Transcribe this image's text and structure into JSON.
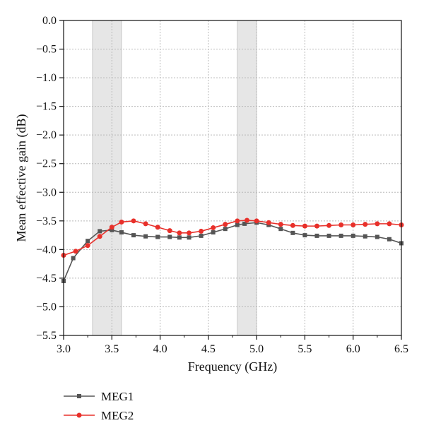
{
  "chart_data": {
    "type": "line",
    "xlabel": "Frequency (GHz)",
    "ylabel": "Mean effective gain (dB)",
    "xlim": [
      3.0,
      6.5
    ],
    "ylim": [
      -5.5,
      0.0
    ],
    "x_ticks": [
      "3.0",
      "3.5",
      "4.0",
      "4.5",
      "5.0",
      "5.5",
      "6.0",
      "6.5"
    ],
    "y_ticks": [
      "0.0",
      "−0.5",
      "−1.0",
      "−1.5",
      "−2.0",
      "−2.5",
      "−3.0",
      "−3.5",
      "−4.0",
      "−4.5",
      "−5.0",
      "−5.5"
    ],
    "grid": true,
    "legend_position": "bottom-left, below plot",
    "shaded_bands": [
      {
        "x0": 3.3,
        "x1": 3.6
      },
      {
        "x0": 4.8,
        "x1": 5.0
      }
    ],
    "series": [
      {
        "name": "MEG1",
        "color": "#555555",
        "marker": "square",
        "x": [
          3.0,
          3.1,
          3.25,
          3.375,
          3.5,
          3.6,
          3.725,
          3.85,
          3.975,
          4.1,
          4.2,
          4.3,
          4.425,
          4.55,
          4.675,
          4.8,
          4.875,
          5.0,
          5.125,
          5.25,
          5.375,
          5.5,
          5.625,
          5.75,
          5.875,
          6.0,
          6.125,
          6.25,
          6.375,
          6.5
        ],
        "values": [
          -4.55,
          -4.15,
          -3.85,
          -3.68,
          -3.66,
          -3.7,
          -3.75,
          -3.77,
          -3.78,
          -3.78,
          -3.79,
          -3.79,
          -3.76,
          -3.7,
          -3.64,
          -3.57,
          -3.55,
          -3.53,
          -3.57,
          -3.64,
          -3.71,
          -3.75,
          -3.76,
          -3.76,
          -3.76,
          -3.76,
          -3.77,
          -3.78,
          -3.82,
          -3.89
        ]
      },
      {
        "name": "MEG2",
        "color": "#e8302a",
        "marker": "circle",
        "x": [
          3.0,
          3.125,
          3.25,
          3.375,
          3.5,
          3.6,
          3.725,
          3.85,
          3.975,
          4.1,
          4.2,
          4.3,
          4.425,
          4.55,
          4.675,
          4.8,
          4.9,
          5.0,
          5.125,
          5.25,
          5.375,
          5.5,
          5.625,
          5.75,
          5.875,
          6.0,
          6.125,
          6.25,
          6.375,
          6.5
        ],
        "values": [
          -4.1,
          -4.03,
          -3.93,
          -3.77,
          -3.61,
          -3.52,
          -3.5,
          -3.55,
          -3.61,
          -3.67,
          -3.71,
          -3.71,
          -3.68,
          -3.62,
          -3.56,
          -3.5,
          -3.49,
          -3.5,
          -3.53,
          -3.56,
          -3.58,
          -3.59,
          -3.59,
          -3.58,
          -3.57,
          -3.57,
          -3.56,
          -3.55,
          -3.55,
          -3.57
        ]
      }
    ]
  }
}
